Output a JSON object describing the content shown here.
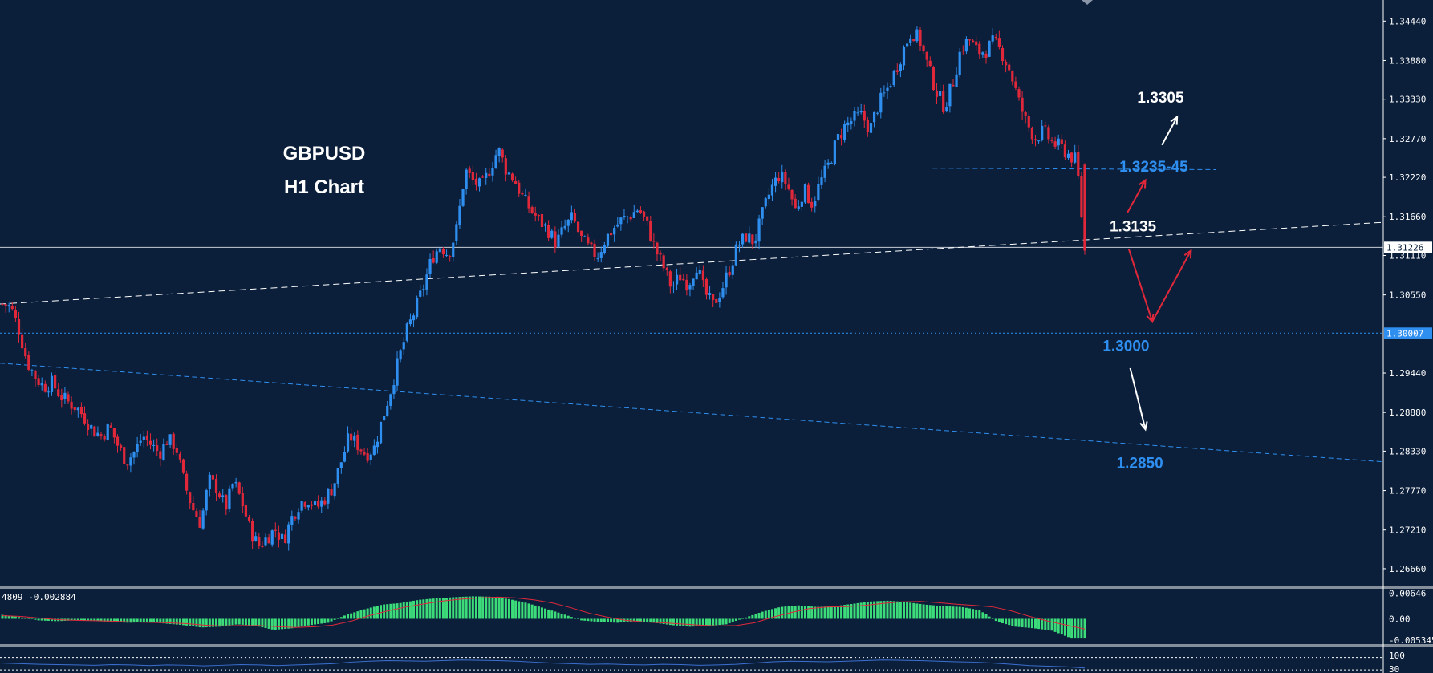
{
  "chart_data": {
    "type": "candlestick",
    "title": "GBPUSD",
    "subtitle": "H1 Chart",
    "colors": {
      "background": "#0b1f3a",
      "bull": "#2f8ff0",
      "bear": "#e0283a",
      "white": "#ffffff",
      "blue_label": "#2f8ff0",
      "macd_hist": "#3ddc7a",
      "macd_signal": "#e0283a",
      "rsi_line": "#3b6fd0"
    },
    "y_axis": {
      "ticks": [
        "1.34440",
        "1.33880",
        "1.33330",
        "1.32770",
        "1.32220",
        "1.31660",
        "1.31110",
        "1.30550",
        "1.29440",
        "1.28880",
        "1.28330",
        "1.27770",
        "1.27210",
        "1.26660"
      ],
      "ylim": [
        1.2642,
        1.3474
      ],
      "current_price_label": "1.31226",
      "current_price": 1.31226,
      "level_label": "1.30007",
      "level_price": 1.30007
    },
    "close_path": [
      1.3042,
      1.3038,
      1.3005,
      1.296,
      1.2938,
      1.2924,
      1.293,
      1.2912,
      1.2902,
      1.2895,
      1.288,
      1.2862,
      1.2855,
      1.2868,
      1.284,
      1.2818,
      1.2832,
      1.2855,
      1.2842,
      1.283,
      1.285,
      1.284,
      1.2788,
      1.2752,
      1.273,
      1.2792,
      1.278,
      1.2752,
      1.279,
      1.276,
      1.272,
      1.2698,
      1.271,
      1.2722,
      1.2705,
      1.2738,
      1.276,
      1.2765,
      1.2752,
      1.2766,
      1.2782,
      1.2818,
      1.2855,
      1.2842,
      1.2828,
      1.2838,
      1.288,
      1.292,
      1.2965,
      1.3005,
      1.3035,
      1.3068,
      1.3108,
      1.3125,
      1.3112,
      1.315,
      1.3232,
      1.3216,
      1.3208,
      1.3234,
      1.3262,
      1.3232,
      1.3218,
      1.3192,
      1.3175,
      1.316,
      1.3148,
      1.3128,
      1.315,
      1.3165,
      1.3135,
      1.312,
      1.311,
      1.3135,
      1.315,
      1.3162,
      1.3168,
      1.3178,
      1.3155,
      1.312,
      1.3095,
      1.3065,
      1.3082,
      1.307,
      1.3098,
      1.3058,
      1.304,
      1.3062,
      1.3092,
      1.3125,
      1.3138,
      1.313,
      1.317,
      1.3205,
      1.3225,
      1.3212,
      1.3175,
      1.3205,
      1.3185,
      1.3215,
      1.324,
      1.3275,
      1.3295,
      1.3305,
      1.331,
      1.329,
      1.3325,
      1.3345,
      1.3372,
      1.3402,
      1.343,
      1.3418,
      1.338,
      1.3345,
      1.3322,
      1.3355,
      1.3405,
      1.3418,
      1.34,
      1.3402,
      1.3415,
      1.3398,
      1.3372,
      1.333,
      1.3298,
      1.3278,
      1.3288,
      1.3272,
      1.3265,
      1.3255,
      1.3245,
      1.3118
    ],
    "trendlines": [
      {
        "kind": "white-dashed",
        "from_x": 0,
        "from_y": 1.3042,
        "to_x": 1.0,
        "to_y": 1.3158
      },
      {
        "kind": "blue-dashed",
        "from_x": 0,
        "from_y": 1.2958,
        "to_x": 1.0,
        "to_y": 1.2818
      },
      {
        "kind": "blue-dashed-short",
        "from_x": 0.675,
        "from_y": 1.3235,
        "to_x": 0.88,
        "to_y": 1.3233
      },
      {
        "kind": "blue-dotted-horizontal",
        "price": 1.30007
      }
    ],
    "annotations": [
      {
        "text": "1.3305",
        "price": 1.3335,
        "color": "white",
        "x_frac": 0.84
      },
      {
        "text": "1.3235-45",
        "price": 1.3237,
        "color": "blue",
        "x_frac": 0.835
      },
      {
        "text": "1.3135",
        "price": 1.3152,
        "color": "white",
        "x_frac": 0.82
      },
      {
        "text": "1.3000",
        "price": 1.2982,
        "color": "blue",
        "x_frac": 0.815
      },
      {
        "text": "1.2850",
        "price": 1.2816,
        "color": "blue",
        "x_frac": 0.825
      }
    ],
    "macd": {
      "label": "4809 -0.002884",
      "ticks": [
        "0.00646",
        "0.00",
        "-0.005345"
      ],
      "ylim": [
        -0.0062,
        0.0072
      ],
      "histogram": [
        0.001,
        0.0004,
        -0.0004,
        -0.0006,
        -0.0004,
        -0.0005,
        -0.0008,
        -0.001,
        -0.0008,
        -0.0012,
        -0.0016,
        -0.0022,
        -0.002,
        -0.0014,
        -0.0018,
        -0.0028,
        -0.0024,
        -0.0016,
        -0.001,
        0.001,
        0.0024,
        0.0036,
        0.004,
        0.0048,
        0.0052,
        0.0055,
        0.0057,
        0.0056,
        0.005,
        0.004,
        0.0026,
        0.0012,
        -0.0004,
        -0.0008,
        -0.001,
        -0.0006,
        -0.001,
        -0.0016,
        -0.002,
        -0.0018,
        -0.0014,
        0.0002,
        0.0018,
        0.003,
        0.0034,
        0.003,
        0.0032,
        0.0038,
        0.0044,
        0.0046,
        0.0042,
        0.0036,
        0.0032,
        0.003,
        0.0022,
        -0.0008,
        -0.002,
        -0.0024,
        -0.003,
        -0.0048
      ],
      "signal": [
        0.0008,
        0.0006,
        0.0002,
        -0.0002,
        -0.0004,
        -0.0005,
        -0.0006,
        -0.0008,
        -0.0009,
        -0.001,
        -0.0012,
        -0.0016,
        -0.0018,
        -0.0017,
        -0.0017,
        -0.002,
        -0.0022,
        -0.002,
        -0.0016,
        -0.0006,
        0.0008,
        0.002,
        0.003,
        0.0038,
        0.0045,
        0.005,
        0.0053,
        0.0055,
        0.0053,
        0.0048,
        0.004,
        0.0028,
        0.0014,
        0.0004,
        -0.0004,
        -0.0008,
        -0.001,
        -0.0013,
        -0.0016,
        -0.0018,
        -0.0017,
        -0.001,
        0.0004,
        0.0016,
        0.0026,
        0.003,
        0.0031,
        0.0034,
        0.0039,
        0.0043,
        0.0044,
        0.0041,
        0.0037,
        0.0034,
        0.003,
        0.002,
        0.0006,
        -0.0006,
        -0.0016,
        -0.0026
      ]
    },
    "rsi": {
      "ticks": [
        "100",
        "30"
      ],
      "values": [
        52,
        50,
        48,
        47,
        46,
        45,
        47,
        46,
        44,
        46,
        45,
        43,
        45,
        47,
        46,
        44,
        46,
        48,
        50,
        55,
        58,
        60,
        59,
        58,
        60,
        62,
        61,
        60,
        58,
        55,
        52,
        50,
        48,
        49,
        47,
        46,
        48,
        47,
        45,
        46,
        48,
        52,
        56,
        58,
        57,
        56,
        58,
        60,
        62,
        61,
        60,
        58,
        56,
        55,
        52,
        48,
        44,
        42,
        40,
        36
      ]
    }
  }
}
